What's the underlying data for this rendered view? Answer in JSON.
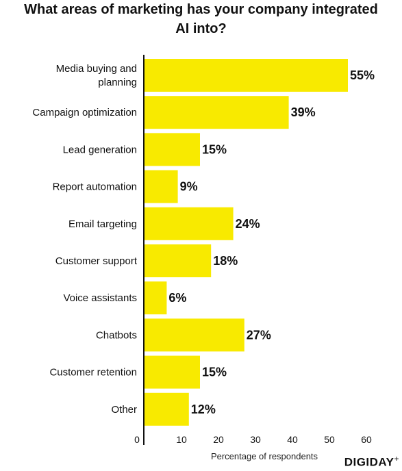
{
  "chart_data": {
    "type": "bar",
    "orientation": "horizontal",
    "title_lines": [
      "What areas of marketing has your company integrated",
      "AI into?"
    ],
    "categories": [
      [
        "Media buying and",
        "planning"
      ],
      [
        "Campaign optimization"
      ],
      [
        "Lead generation"
      ],
      [
        "Report automation"
      ],
      [
        "Email targeting"
      ],
      [
        "Customer support"
      ],
      [
        "Voice assistants"
      ],
      [
        "Chatbots"
      ],
      [
        "Customer retention"
      ],
      [
        "Other"
      ]
    ],
    "values": [
      55,
      39,
      15,
      9,
      24,
      18,
      6,
      27,
      15,
      12
    ],
    "value_labels": [
      "55%",
      "39%",
      "15%",
      "9%",
      "24%",
      "18%",
      "6%",
      "27%",
      "15%",
      "12%"
    ],
    "xticks": [
      0,
      10,
      20,
      30,
      40,
      50,
      60
    ],
    "xlabel": "Percentage of respondents",
    "xlim": [
      0,
      60
    ],
    "bar_color": "#f8ea00"
  },
  "brand": {
    "name": "DIGIDAY",
    "mark": "+"
  }
}
